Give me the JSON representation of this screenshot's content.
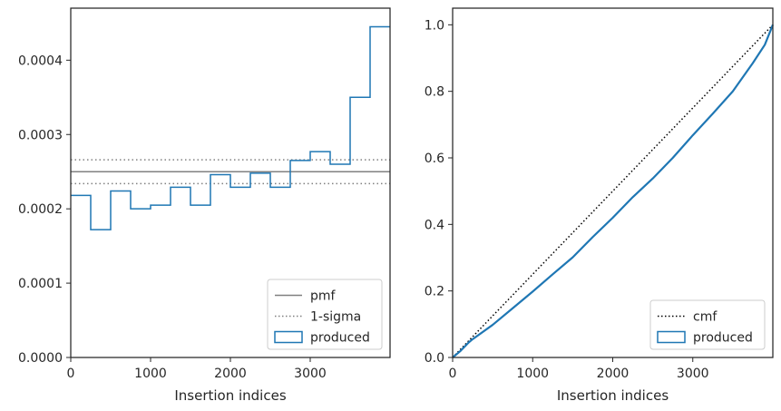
{
  "chart_data": [
    {
      "type": "histogram-step",
      "xlabel": "Insertion indices",
      "ylabel": "",
      "xlim": [
        0,
        4000
      ],
      "ylim": [
        0,
        0.00047
      ],
      "x_ticks": [
        {
          "value": 0,
          "label": "0"
        },
        {
          "value": 1000,
          "label": "1000"
        },
        {
          "value": 2000,
          "label": "2000"
        },
        {
          "value": 3000,
          "label": "3000"
        }
      ],
      "y_ticks": [
        {
          "value": 0,
          "label": "0.0000"
        },
        {
          "value": 0.0001,
          "label": "0.0001"
        },
        {
          "value": 0.0002,
          "label": "0.0002"
        },
        {
          "value": 0.0003,
          "label": "0.0003"
        },
        {
          "value": 0.0004,
          "label": "0.0004"
        }
      ],
      "bin_edges": [
        0,
        250,
        500,
        750,
        1000,
        1250,
        1500,
        1750,
        2000,
        2250,
        2500,
        2750,
        3000,
        3250,
        3500,
        3750,
        4000
      ],
      "bin_values": [
        0.000218,
        0.000172,
        0.000224,
        0.0002,
        0.000205,
        0.000229,
        0.000205,
        0.000246,
        0.000229,
        0.000248,
        0.000229,
        0.000265,
        0.000277,
        0.00026,
        0.00035,
        0.000445
      ],
      "pmf": 0.00025,
      "sigma_band": [
        0.000234,
        0.000266
      ],
      "legend": {
        "position": "lower-right",
        "entries": [
          {
            "label": "pmf",
            "style": "solid-line",
            "color": "#808080"
          },
          {
            "label": "1-sigma",
            "style": "dotted-line",
            "color": "#808080"
          },
          {
            "label": "produced",
            "style": "box",
            "color": "#1f77b4"
          }
        ]
      },
      "colors": {
        "produced": "#1f77b4",
        "reference": "#808080"
      }
    },
    {
      "type": "line",
      "xlabel": "Insertion indices",
      "ylabel": "",
      "xlim": [
        0,
        4000
      ],
      "ylim": [
        0,
        1.05
      ],
      "x_ticks": [
        {
          "value": 0,
          "label": "0"
        },
        {
          "value": 1000,
          "label": "1000"
        },
        {
          "value": 2000,
          "label": "2000"
        },
        {
          "value": 3000,
          "label": "3000"
        }
      ],
      "y_ticks": [
        {
          "value": 0,
          "label": "0.0"
        },
        {
          "value": 0.2,
          "label": "0.2"
        },
        {
          "value": 0.4,
          "label": "0.4"
        },
        {
          "value": 0.6,
          "label": "0.6"
        },
        {
          "value": 0.8,
          "label": "0.8"
        },
        {
          "value": 1.0,
          "label": "1.0"
        }
      ],
      "cmf": {
        "x": [
          0,
          4000
        ],
        "y": [
          0,
          1.0
        ]
      },
      "produced": {
        "x": [
          0,
          100,
          200,
          250,
          500,
          750,
          1000,
          1250,
          1500,
          1750,
          2000,
          2250,
          2500,
          2750,
          3000,
          3250,
          3500,
          3750,
          3900,
          4000
        ],
        "y": [
          0,
          0.02,
          0.045,
          0.055,
          0.098,
          0.148,
          0.198,
          0.25,
          0.301,
          0.362,
          0.42,
          0.482,
          0.538,
          0.6,
          0.668,
          0.733,
          0.8,
          0.885,
          0.94,
          1.0
        ]
      },
      "legend": {
        "position": "lower-right",
        "entries": [
          {
            "label": "cmf",
            "style": "dotted-line",
            "color": "#000000"
          },
          {
            "label": "produced",
            "style": "box",
            "color": "#1f77b4"
          }
        ]
      },
      "colors": {
        "produced": "#1f77b4",
        "cmf": "#000000"
      }
    }
  ]
}
